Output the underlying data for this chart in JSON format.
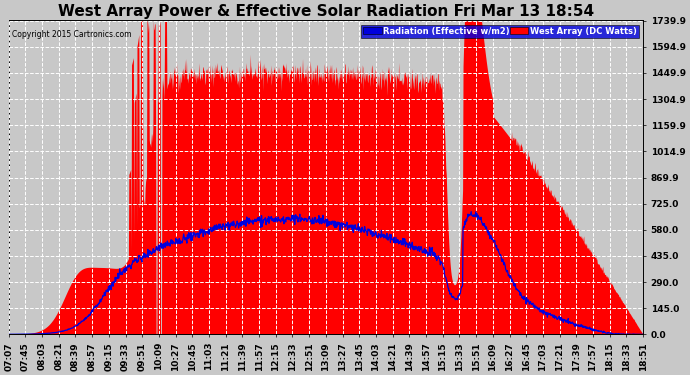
{
  "title": "West Array Power & Effective Solar Radiation Fri Mar 13 18:54",
  "copyright": "Copyright 2015 Cartronics.com",
  "legend_radiation": "Radiation (Effective w/m2)",
  "legend_west": "West Array (DC Watts)",
  "yticks": [
    0.0,
    145.0,
    290.0,
    435.0,
    580.0,
    725.0,
    869.9,
    1014.9,
    1159.9,
    1304.9,
    1449.9,
    1594.9,
    1739.9
  ],
  "ymax": 1739.9,
  "bg_color": "#c8c8c8",
  "plot_bg_color": "#c8c8c8",
  "grid_color": "#ffffff",
  "red_color": "#ff0000",
  "blue_color": "#0000dd",
  "title_fontsize": 11,
  "tick_fontsize": 6.5,
  "xtick_labels": [
    "07:07",
    "07:45",
    "08:03",
    "08:21",
    "08:39",
    "08:57",
    "09:15",
    "09:33",
    "09:51",
    "10:09",
    "10:27",
    "10:45",
    "11:03",
    "11:21",
    "11:39",
    "11:57",
    "12:15",
    "12:33",
    "12:51",
    "13:09",
    "13:27",
    "13:45",
    "14:03",
    "14:21",
    "14:39",
    "14:57",
    "15:15",
    "15:33",
    "15:51",
    "16:09",
    "16:27",
    "16:45",
    "17:03",
    "17:21",
    "17:39",
    "17:57",
    "18:15",
    "18:33",
    "18:51"
  ]
}
